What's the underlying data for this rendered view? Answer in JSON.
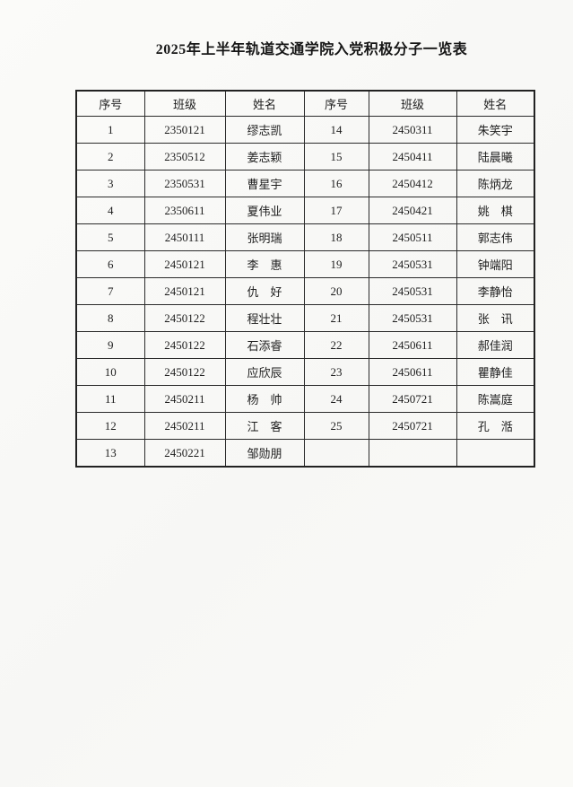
{
  "page": {
    "title": "2025年上半年轨道交通学院入党积极分子一览表"
  },
  "table": {
    "headers": [
      "序号",
      "班级",
      "姓名",
      "序号",
      "班级",
      "姓名"
    ],
    "rows": [
      [
        "1",
        "2350121",
        "缪志凯",
        "14",
        "2450311",
        "朱笑宇"
      ],
      [
        "2",
        "2350512",
        "姜志颖",
        "15",
        "2450411",
        "陆晨曦"
      ],
      [
        "3",
        "2350531",
        "曹星宇",
        "16",
        "2450412",
        "陈炳龙"
      ],
      [
        "4",
        "2350611",
        "夏伟业",
        "17",
        "2450421",
        "姚　棋"
      ],
      [
        "5",
        "2450111",
        "张明瑞",
        "18",
        "2450511",
        "郭志伟"
      ],
      [
        "6",
        "2450121",
        "李　惠",
        "19",
        "2450531",
        "钟端阳"
      ],
      [
        "7",
        "2450121",
        "仇　好",
        "20",
        "2450531",
        "李静怡"
      ],
      [
        "8",
        "2450122",
        "程壮壮",
        "21",
        "2450531",
        "张　讯"
      ],
      [
        "9",
        "2450122",
        "石添睿",
        "22",
        "2450611",
        "郝佳润"
      ],
      [
        "10",
        "2450122",
        "应欣辰",
        "23",
        "2450611",
        "瞿静佳"
      ],
      [
        "11",
        "2450211",
        "杨　帅",
        "24",
        "2450721",
        "陈嵩庭"
      ],
      [
        "12",
        "2450211",
        "江　客",
        "25",
        "2450721",
        "孔　湉"
      ],
      [
        "13",
        "2450221",
        "邹勋朋",
        "",
        "",
        ""
      ]
    ]
  }
}
